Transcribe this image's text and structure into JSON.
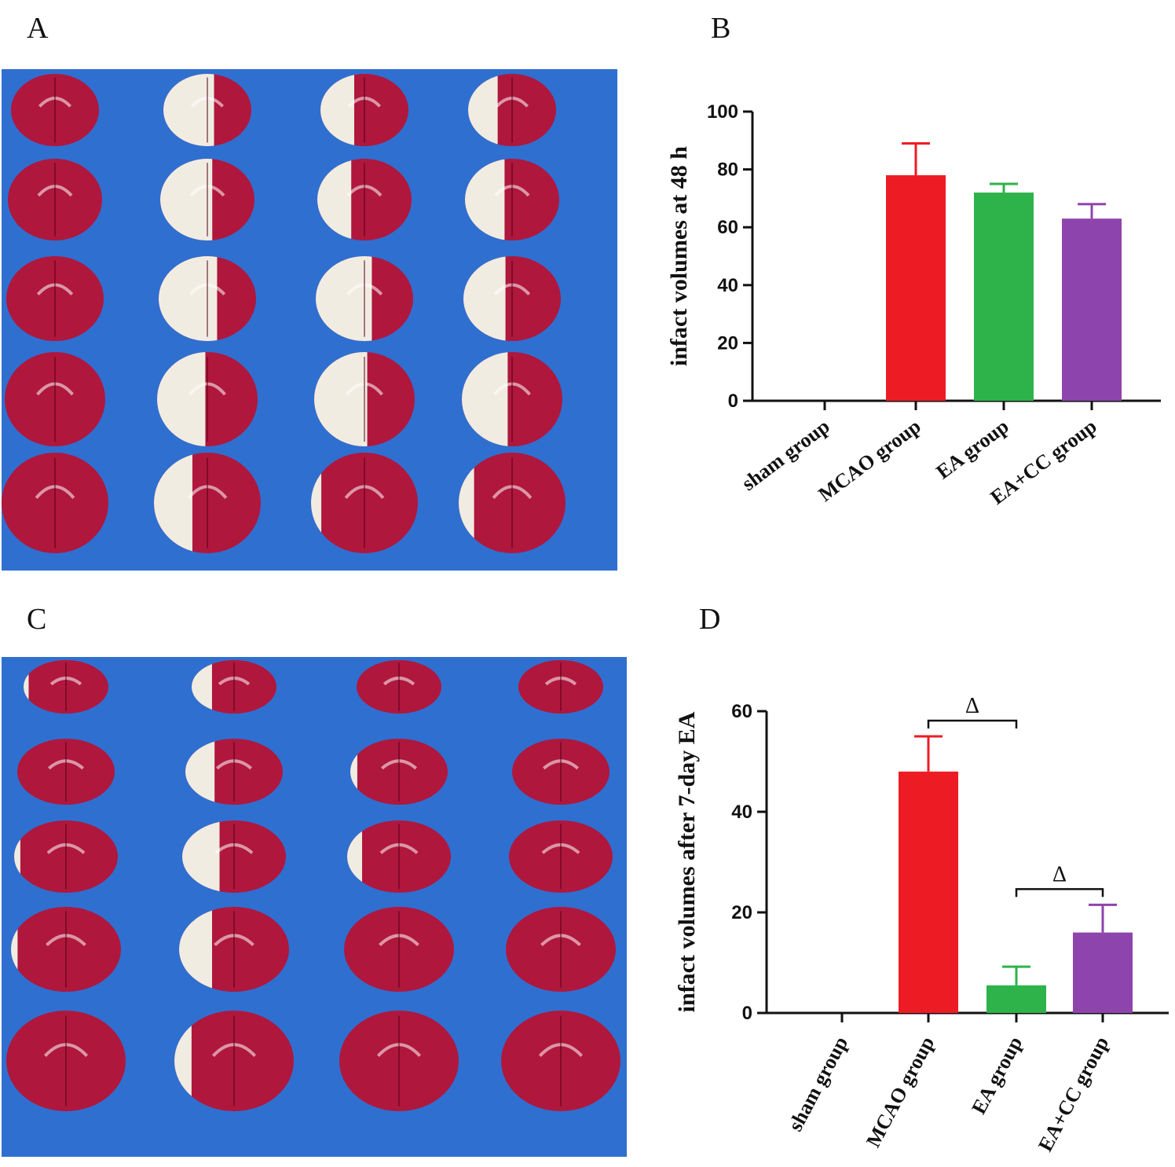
{
  "panels": {
    "a": "A",
    "b": "B",
    "c": "C",
    "d": "D"
  },
  "colors": {
    "background_blue": "#2f6fd0",
    "tissue_red": "#b0173d",
    "infarct_white": "#f1ece2",
    "sham": "#ffffff",
    "mcao": "#ed1c24",
    "ea": "#2db34a",
    "eacc": "#8e44ad"
  },
  "photos": [
    {
      "name": "photo-48h",
      "rows": [
        [
          0.0,
          0.48,
          0.32,
          0.28
        ],
        [
          0.0,
          0.46,
          0.3,
          0.35
        ],
        [
          0.0,
          0.5,
          0.48,
          0.36
        ],
        [
          0.0,
          0.4,
          0.44,
          0.38
        ],
        [
          0.0,
          0.3,
          0.08,
          0.12
        ]
      ]
    },
    {
      "name": "photo-7day",
      "rows": [
        [
          0.05,
          0.2,
          0.0,
          0.0
        ],
        [
          0.0,
          0.25,
          0.06,
          0.0
        ],
        [
          0.05,
          0.3,
          0.12,
          0.0
        ],
        [
          0.05,
          0.25,
          0.0,
          0.0
        ],
        [
          0.0,
          0.12,
          0.0,
          0.0
        ]
      ]
    }
  ],
  "chart_data": [
    {
      "type": "bar",
      "panel": "B",
      "title": "",
      "xlabel": "",
      "ylabel": "infact volumes at 48 h",
      "categories": [
        "sham group",
        "MCAO group",
        "EA group",
        "EA+CC group"
      ],
      "values": [
        0,
        78,
        72,
        63
      ],
      "errors": [
        0,
        11,
        3,
        5
      ],
      "yticks": [
        0,
        20,
        40,
        60,
        80,
        100
      ],
      "ylim": [
        0,
        100
      ],
      "significance": []
    },
    {
      "type": "bar",
      "panel": "D",
      "title": "",
      "xlabel": "",
      "ylabel": "infact volumes after 7-day EA",
      "categories": [
        "sham group",
        "MCAO group",
        "EA group",
        "EA+CC group"
      ],
      "values": [
        0,
        48,
        5.5,
        16
      ],
      "errors": [
        0,
        7,
        3.7,
        5.5
      ],
      "yticks": [
        0,
        20,
        40,
        60
      ],
      "ylim": [
        0,
        60
      ],
      "significance": [
        {
          "from": 1,
          "to": 2,
          "label": "Δ"
        },
        {
          "from": 2,
          "to": 3,
          "label": "Δ"
        }
      ]
    }
  ]
}
